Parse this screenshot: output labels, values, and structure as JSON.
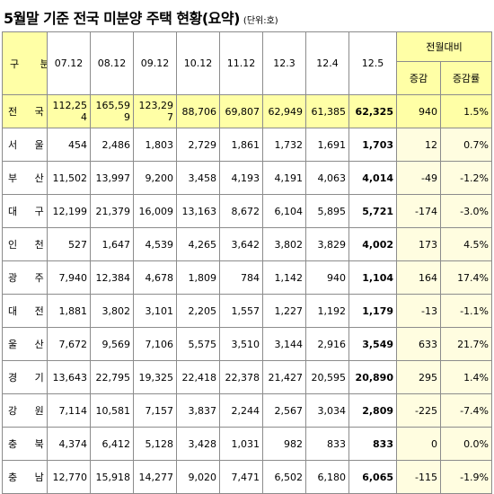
{
  "title": "5월말 기준 전국 미분양 주택 현황(요약)",
  "unit": "(단위:호)",
  "headers": {
    "region": "구 분",
    "periods": [
      "07.12",
      "08.12",
      "09.12",
      "10.12",
      "11.12",
      "12.3",
      "12.4",
      "12.5"
    ],
    "mom": "전월대비",
    "change": "증감",
    "change_rate": "증감률"
  },
  "rows": [
    {
      "region": "전 국",
      "values": [
        "112,254",
        "165,599",
        "123,297",
        "88,706",
        "69,807",
        "62,949",
        "61,385",
        "62,325"
      ],
      "change": "940",
      "rate": "1.5%"
    },
    {
      "region": "서 울",
      "values": [
        "454",
        "2,486",
        "1,803",
        "2,729",
        "1,861",
        "1,732",
        "1,691",
        "1,703"
      ],
      "change": "12",
      "rate": "0.7%"
    },
    {
      "region": "부 산",
      "values": [
        "11,502",
        "13,997",
        "9,200",
        "3,458",
        "4,193",
        "4,191",
        "4,063",
        "4,014"
      ],
      "change": "-49",
      "rate": "-1.2%"
    },
    {
      "region": "대 구",
      "values": [
        "12,199",
        "21,379",
        "16,009",
        "13,163",
        "8,672",
        "6,104",
        "5,895",
        "5,721"
      ],
      "change": "-174",
      "rate": "-3.0%"
    },
    {
      "region": "인 천",
      "values": [
        "527",
        "1,647",
        "4,539",
        "4,265",
        "3,642",
        "3,802",
        "3,829",
        "4,002"
      ],
      "change": "173",
      "rate": "4.5%"
    },
    {
      "region": "광 주",
      "values": [
        "7,940",
        "12,384",
        "4,678",
        "1,809",
        "784",
        "1,142",
        "940",
        "1,104"
      ],
      "change": "164",
      "rate": "17.4%"
    },
    {
      "region": "대 전",
      "values": [
        "1,881",
        "3,802",
        "3,101",
        "2,205",
        "1,557",
        "1,227",
        "1,192",
        "1,179"
      ],
      "change": "-13",
      "rate": "-1.1%"
    },
    {
      "region": "울 산",
      "values": [
        "7,672",
        "9,569",
        "7,106",
        "5,575",
        "3,510",
        "3,144",
        "2,916",
        "3,549"
      ],
      "change": "633",
      "rate": "21.7%"
    },
    {
      "region": "경 기",
      "values": [
        "13,643",
        "22,795",
        "19,325",
        "22,418",
        "22,378",
        "21,427",
        "20,595",
        "20,890"
      ],
      "change": "295",
      "rate": "1.4%"
    },
    {
      "region": "강 원",
      "values": [
        "7,114",
        "10,581",
        "7,157",
        "3,837",
        "2,244",
        "2,567",
        "3,034",
        "2,809"
      ],
      "change": "-225",
      "rate": "-7.4%"
    },
    {
      "region": "충 북",
      "values": [
        "4,374",
        "6,412",
        "5,128",
        "3,428",
        "1,031",
        "982",
        "833",
        "833"
      ],
      "change": "0",
      "rate": "0.0%"
    },
    {
      "region": "충 남",
      "values": [
        "12,770",
        "15,918",
        "14,277",
        "9,020",
        "7,471",
        "6,502",
        "6,180",
        "6,065"
      ],
      "change": "-115",
      "rate": "-1.9%"
    }
  ],
  "colors": {
    "header_highlight": "#ffffa6",
    "total_row": "#ffffa6",
    "change_columns": "#fffde0",
    "border": "#8c8c8c"
  }
}
